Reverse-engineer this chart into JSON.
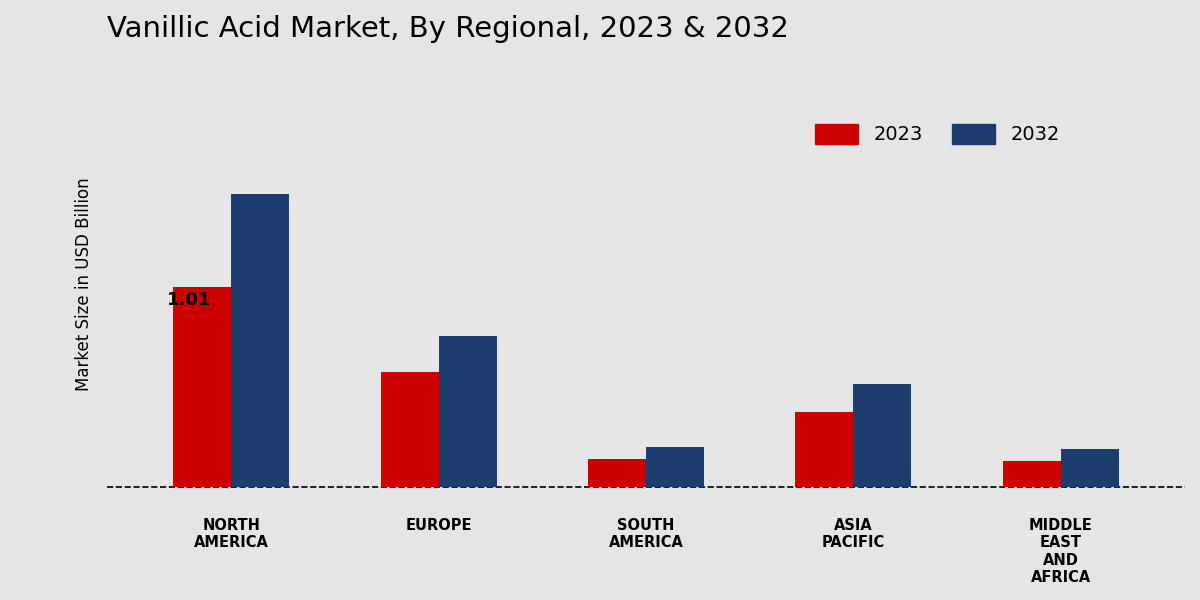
{
  "title": "Vanillic Acid Market, By Regional, 2023 & 2032",
  "ylabel": "Market Size in USD Billion",
  "categories": [
    "NORTH\nAMERICA",
    "EUROPE",
    "SOUTH\nAMERICA",
    "ASIA\nPACIFIC",
    "MIDDLE\nEAST\nAND\nAFRICA"
  ],
  "values_2023": [
    1.01,
    0.58,
    0.14,
    0.38,
    0.13
  ],
  "values_2032": [
    1.48,
    0.76,
    0.2,
    0.52,
    0.19
  ],
  "color_2023": "#cc0000",
  "color_2032": "#1c3d6e",
  "background_color": "#e5e5e5",
  "annotation_value": "1.01",
  "annotation_region_idx": 0,
  "bar_width": 0.28,
  "legend_labels": [
    "2023",
    "2032"
  ],
  "title_fontsize": 21,
  "label_fontsize": 12,
  "tick_fontsize": 10.5,
  "legend_fontsize": 14
}
